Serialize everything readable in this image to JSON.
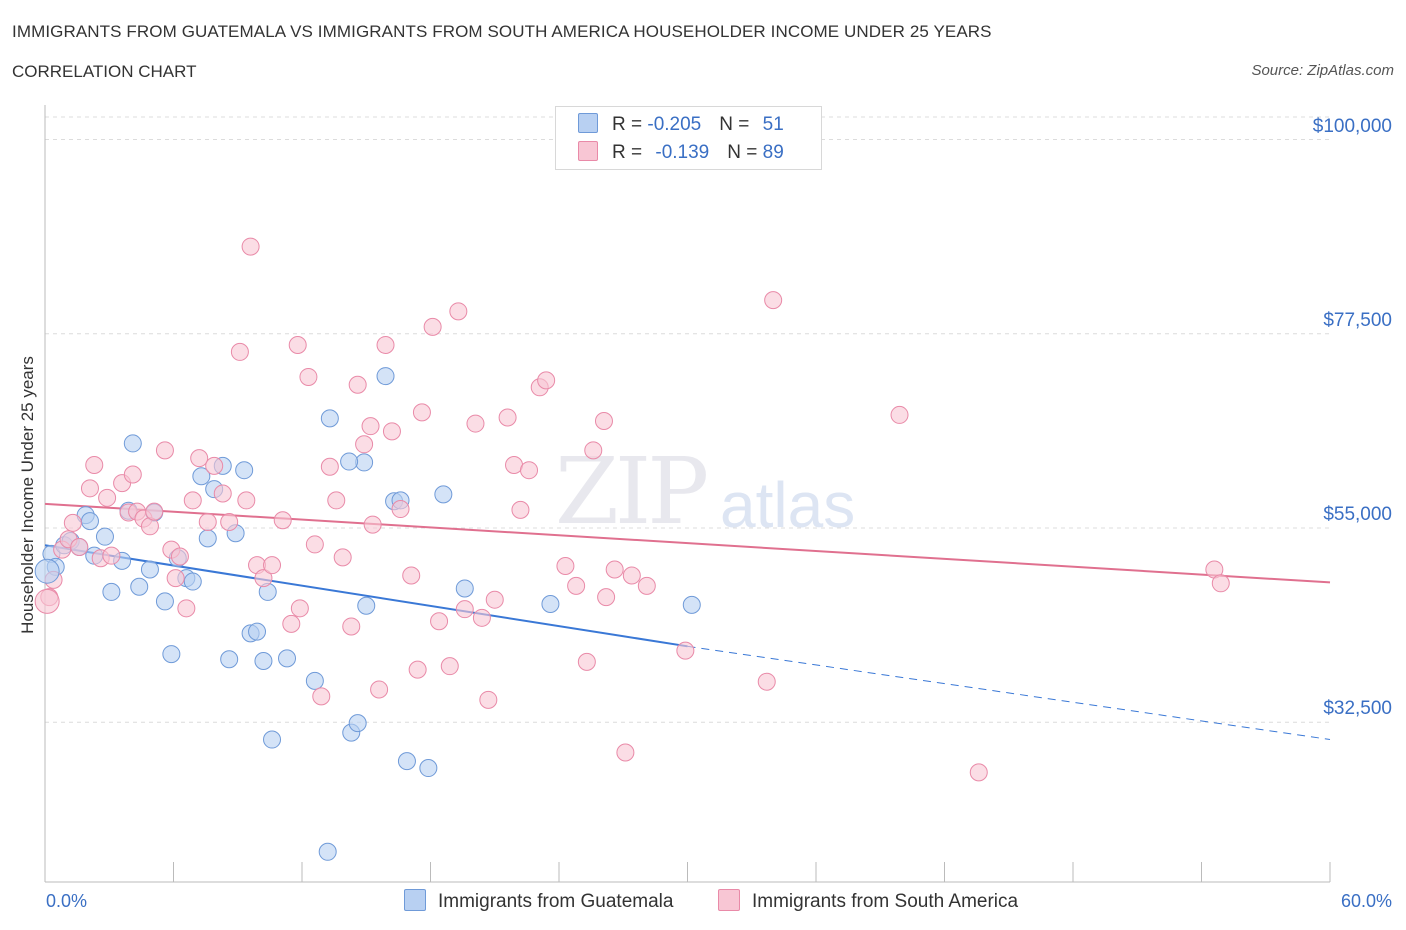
{
  "title": "IMMIGRANTS FROM GUATEMALA VS IMMIGRANTS FROM SOUTH AMERICA HOUSEHOLDER INCOME UNDER 25 YEARS",
  "subtitle": "CORRELATION CHART",
  "source": "Source: ZipAtlas.com",
  "watermark_zip": "ZIP",
  "watermark_atlas": "atlas",
  "legend": {
    "row1": {
      "r_label": "R = ",
      "r_value": "-0.205",
      "n_label": "N = ",
      "n_value": "51"
    },
    "row2": {
      "r_label": "R = ",
      "r_value": "-0.139",
      "n_label": "N = ",
      "n_value": "89"
    }
  },
  "colors": {
    "guatemala_fill": "#b8d0f2",
    "guatemala_stroke": "#6f9ad8",
    "guatemala_line": "#3a78d6",
    "southamerica_fill": "#f8c6d4",
    "southamerica_stroke": "#e98aa8",
    "southamerica_line": "#e0708f",
    "grid": "#dcdcdc",
    "axis_text": "#3a6fc4"
  },
  "chart_data": {
    "type": "scatter",
    "title": "IMMIGRANTS FROM GUATEMALA VS IMMIGRANTS FROM SOUTH AMERICA HOUSEHOLDER INCOME UNDER 25 YEARS",
    "subtitle": "CORRELATION CHART",
    "xlabel": "",
    "ylabel": "Householder Income Under 25 years",
    "xlim": [
      0,
      60
    ],
    "ylim": [
      14000,
      104000
    ],
    "x_tick_labels": [
      "0.0%",
      "60.0%"
    ],
    "y_ticks": [
      32500,
      55000,
      77500,
      100000
    ],
    "y_tick_labels": [
      "$32,500",
      "$55,000",
      "$77,500",
      "$100,000"
    ],
    "grid": true,
    "legend_position": "top-center",
    "series": [
      {
        "name": "Immigrants from Guatemala",
        "color": "#6f9ad8",
        "trend": {
          "x": [
            0,
            30
          ],
          "y": [
            53000,
            41300
          ],
          "dashed_extension_to": [
            60,
            30500
          ]
        },
        "points": [
          [
            0.3,
            52000
          ],
          [
            0.5,
            50500
          ],
          [
            0.9,
            53000
          ],
          [
            1.2,
            53500
          ],
          [
            1.6,
            52800
          ],
          [
            1.9,
            56500
          ],
          [
            2.1,
            55800
          ],
          [
            2.3,
            51800
          ],
          [
            2.8,
            54000
          ],
          [
            3.1,
            47600
          ],
          [
            3.6,
            51200
          ],
          [
            3.9,
            57000
          ],
          [
            4.1,
            64800
          ],
          [
            4.4,
            48200
          ],
          [
            4.9,
            50200
          ],
          [
            5.1,
            56800
          ],
          [
            5.6,
            46500
          ],
          [
            5.9,
            40400
          ],
          [
            6.2,
            51500
          ],
          [
            6.6,
            49200
          ],
          [
            6.9,
            48800
          ],
          [
            7.3,
            61000
          ],
          [
            7.6,
            53800
          ],
          [
            7.9,
            59500
          ],
          [
            8.3,
            62200
          ],
          [
            8.6,
            39800
          ],
          [
            8.9,
            54400
          ],
          [
            9.3,
            61700
          ],
          [
            9.6,
            42800
          ],
          [
            9.9,
            43000
          ],
          [
            10.2,
            39600
          ],
          [
            10.4,
            47600
          ],
          [
            10.6,
            30500
          ],
          [
            11.3,
            39900
          ],
          [
            12.6,
            37300
          ],
          [
            13.3,
            67700
          ],
          [
            14.3,
            31300
          ],
          [
            14.6,
            32400
          ],
          [
            14.9,
            62600
          ],
          [
            15.0,
            46000
          ],
          [
            14.2,
            62700
          ],
          [
            15.9,
            72600
          ],
          [
            16.3,
            58100
          ],
          [
            16.6,
            58200
          ],
          [
            16.9,
            28000
          ],
          [
            17.9,
            27200
          ],
          [
            18.6,
            58900
          ],
          [
            19.6,
            48000
          ],
          [
            13.2,
            17500
          ],
          [
            23.6,
            46200
          ],
          [
            30.2,
            46100
          ]
        ]
      },
      {
        "name": "Immigrants from South America",
        "color": "#e98aa8",
        "trend": {
          "x": [
            0,
            60
          ],
          "y": [
            57800,
            48700
          ]
        },
        "points": [
          [
            0.2,
            47000
          ],
          [
            0.4,
            49000
          ],
          [
            0.8,
            52500
          ],
          [
            1.1,
            53700
          ],
          [
            1.3,
            55600
          ],
          [
            1.6,
            52800
          ],
          [
            2.1,
            59600
          ],
          [
            2.3,
            62300
          ],
          [
            2.6,
            51500
          ],
          [
            2.9,
            58500
          ],
          [
            3.1,
            51800
          ],
          [
            3.6,
            60200
          ],
          [
            3.9,
            56800
          ],
          [
            4.1,
            61200
          ],
          [
            4.3,
            56900
          ],
          [
            4.6,
            56100
          ],
          [
            4.9,
            55200
          ],
          [
            5.1,
            56900
          ],
          [
            5.6,
            64000
          ],
          [
            5.9,
            52500
          ],
          [
            6.1,
            49200
          ],
          [
            6.3,
            51700
          ],
          [
            6.6,
            45700
          ],
          [
            6.9,
            58200
          ],
          [
            7.2,
            63100
          ],
          [
            7.6,
            55700
          ],
          [
            7.9,
            62200
          ],
          [
            8.3,
            59000
          ],
          [
            8.6,
            55700
          ],
          [
            9.1,
            75400
          ],
          [
            9.4,
            58200
          ],
          [
            9.6,
            87600
          ],
          [
            9.9,
            50700
          ],
          [
            10.2,
            49200
          ],
          [
            10.6,
            50700
          ],
          [
            11.1,
            55900
          ],
          [
            11.5,
            43900
          ],
          [
            11.8,
            76200
          ],
          [
            11.9,
            45700
          ],
          [
            12.3,
            72500
          ],
          [
            12.6,
            53100
          ],
          [
            12.9,
            35500
          ],
          [
            13.3,
            62100
          ],
          [
            13.6,
            58200
          ],
          [
            13.9,
            51600
          ],
          [
            14.3,
            43600
          ],
          [
            14.6,
            71600
          ],
          [
            14.9,
            64700
          ],
          [
            15.2,
            66800
          ],
          [
            15.3,
            55400
          ],
          [
            15.6,
            36300
          ],
          [
            15.9,
            76200
          ],
          [
            16.2,
            66200
          ],
          [
            16.6,
            57200
          ],
          [
            17.1,
            49500
          ],
          [
            17.4,
            38600
          ],
          [
            17.6,
            68400
          ],
          [
            18.1,
            78300
          ],
          [
            18.4,
            44200
          ],
          [
            18.9,
            39000
          ],
          [
            19.3,
            80100
          ],
          [
            19.6,
            45600
          ],
          [
            20.1,
            67100
          ],
          [
            20.4,
            44600
          ],
          [
            20.7,
            35100
          ],
          [
            21.0,
            46700
          ],
          [
            21.6,
            67800
          ],
          [
            21.9,
            62300
          ],
          [
            22.2,
            57100
          ],
          [
            22.6,
            61700
          ],
          [
            23.1,
            71300
          ],
          [
            23.4,
            72100
          ],
          [
            24.3,
            50600
          ],
          [
            24.8,
            48300
          ],
          [
            25.3,
            39500
          ],
          [
            25.6,
            64000
          ],
          [
            26.1,
            67400
          ],
          [
            26.2,
            47000
          ],
          [
            26.6,
            50200
          ],
          [
            27.1,
            29000
          ],
          [
            28.1,
            48300
          ],
          [
            29.9,
            40800
          ],
          [
            33.7,
            37200
          ],
          [
            34.0,
            81400
          ],
          [
            39.9,
            68100
          ],
          [
            43.6,
            26700
          ],
          [
            54.6,
            50200
          ],
          [
            54.9,
            48600
          ],
          [
            27.4,
            49500
          ]
        ]
      }
    ]
  },
  "bottom_legend": {
    "item1": "Immigrants from Guatemala",
    "item2": "Immigrants from South America"
  }
}
